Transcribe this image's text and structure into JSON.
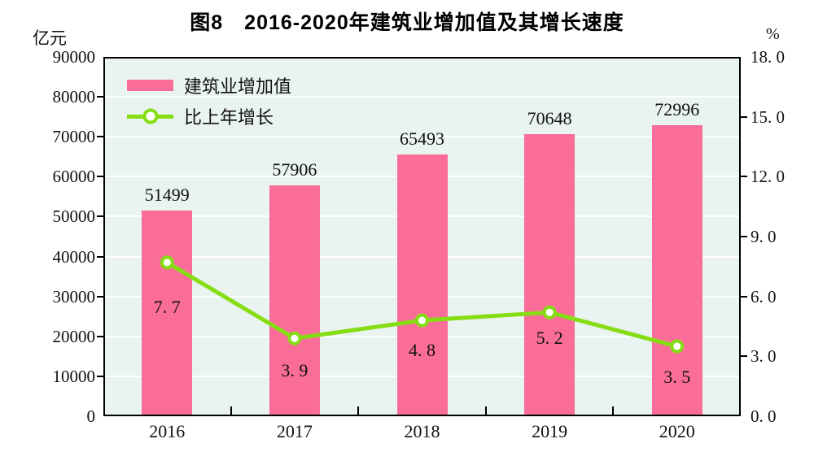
{
  "title": "图8　2016-2020年建筑业增加值及其增长速度",
  "left_axis_unit": "亿元",
  "right_axis_unit": "%",
  "legend": [
    {
      "label": "建筑业增加值",
      "type": "bar"
    },
    {
      "label": "比上年增长",
      "type": "line"
    }
  ],
  "colors": {
    "bar": "#FA6D99",
    "line": "#85DD13",
    "marker_fill": "#FFFFFF",
    "plot_bg": "#E9F3EF",
    "grid": "#FFFFFF",
    "axis": "#000000",
    "text": "#111111"
  },
  "chart_data": {
    "type": "bar+line",
    "title": "图8　2016-2020年建筑业增加值及其增长速度",
    "categories": [
      "2016",
      "2017",
      "2018",
      "2019",
      "2020"
    ],
    "series": [
      {
        "name": "建筑业增加值",
        "type": "bar",
        "axis": "left",
        "unit": "亿元",
        "values": [
          51499,
          57906,
          65493,
          70648,
          72996
        ],
        "labels": [
          "51499",
          "57906",
          "65493",
          "70648",
          "72996"
        ]
      },
      {
        "name": "比上年增长",
        "type": "line",
        "axis": "right",
        "unit": "%",
        "values": [
          7.7,
          3.9,
          4.8,
          5.2,
          3.5
        ],
        "labels": [
          "7. 7",
          "3. 9",
          "4. 8",
          "5. 2",
          "3. 5"
        ]
      }
    ],
    "left_axis": {
      "min": 0,
      "max": 90000,
      "step": 10000,
      "tick_labels": [
        "0",
        "10000",
        "20000",
        "30000",
        "40000",
        "50000",
        "60000",
        "70000",
        "80000",
        "90000"
      ]
    },
    "right_axis": {
      "min": 0,
      "max": 18,
      "step": 3,
      "tick_labels": [
        "0. 0",
        "3. 0",
        "6. 0",
        "9. 0",
        "12. 0",
        "15. 0",
        "18. 0"
      ]
    },
    "grid": true,
    "legend_position": "top-left-inside"
  }
}
